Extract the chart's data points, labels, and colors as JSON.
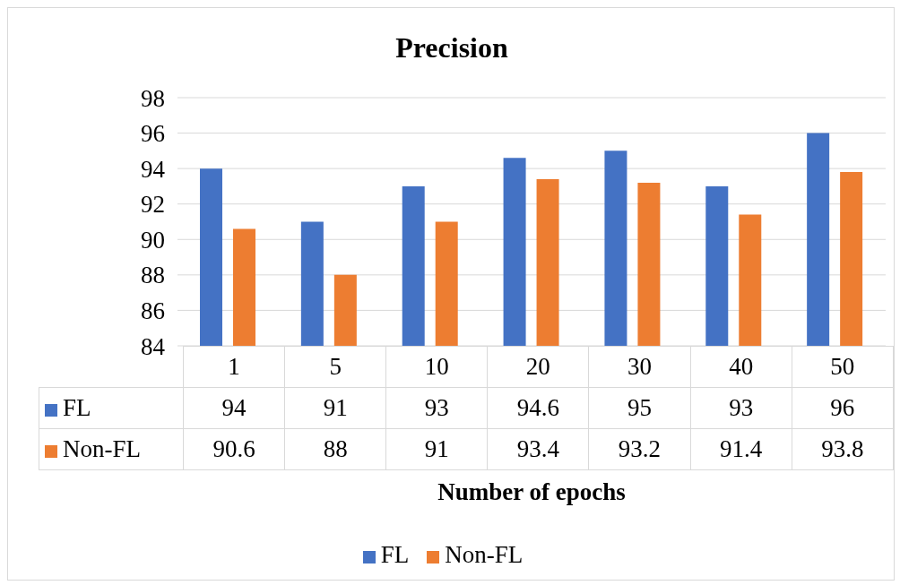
{
  "chart_data": {
    "type": "bar",
    "title": "Precision",
    "xlabel": "Number of epochs",
    "categories": [
      "1",
      "5",
      "10",
      "20",
      "30",
      "40",
      "50"
    ],
    "series": [
      {
        "name": "FL",
        "color": "#4472c4",
        "values": [
          94,
          91,
          93,
          94.6,
          95,
          93,
          96
        ]
      },
      {
        "name": "Non-FL",
        "color": "#ed7d31",
        "values": [
          90.6,
          88,
          91,
          93.4,
          93.2,
          91.4,
          93.8
        ]
      }
    ],
    "ylim": [
      84,
      98
    ],
    "yticks": [
      84,
      86,
      88,
      90,
      92,
      94,
      96,
      98
    ],
    "grid": "y",
    "legend": "bottom",
    "data_labels": true
  }
}
